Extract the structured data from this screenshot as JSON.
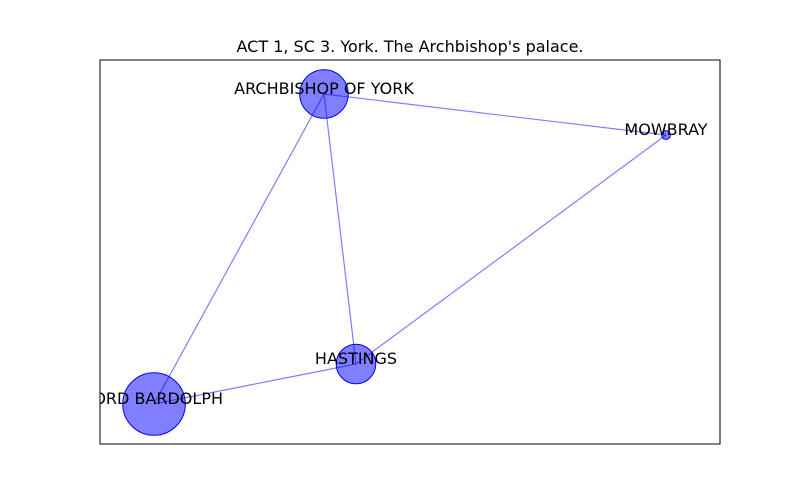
{
  "title": "ACT 1, SC 3. York. The Archbishop's palace.",
  "colors": {
    "node": "#0000ff",
    "edge": "#0000ff",
    "frame": "#000000"
  },
  "nodes": [
    {
      "id": "archbishop",
      "label": "ARCHBISHOP OF YORK",
      "size": 3
    },
    {
      "id": "mowbray",
      "label": "MOWBRAY",
      "size": 0.1
    },
    {
      "id": "hastings",
      "label": "HASTINGS",
      "size": 2
    },
    {
      "id": "bardolph",
      "label": "LORD BARDOLPH",
      "size": 5
    }
  ],
  "edges": [
    [
      "archbishop",
      "mowbray"
    ],
    [
      "archbishop",
      "hastings"
    ],
    [
      "archbishop",
      "bardolph"
    ],
    [
      "mowbray",
      "hastings"
    ],
    [
      "hastings",
      "bardolph"
    ]
  ]
}
